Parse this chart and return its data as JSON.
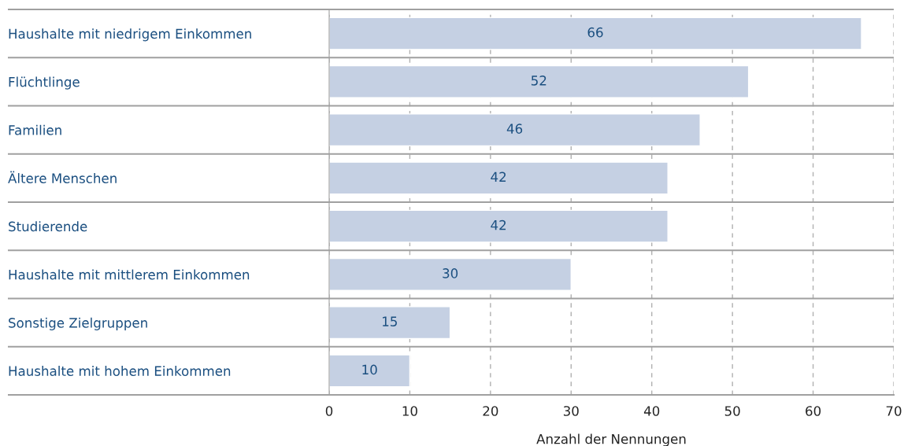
{
  "chart_data": {
    "type": "bar",
    "orientation": "horizontal",
    "xlabel": "Anzahl der Nennungen",
    "categories": [
      "Haushalte mit niedrigem Einkommen",
      "Flüchtlinge",
      "Familien",
      "Ältere Menschen",
      "Studierende",
      "Haushalte mit mittlerem Einkommen",
      "Sonstige Zielgruppen",
      "Haushalte mit hohem Einkommen"
    ],
    "values": [
      66,
      52,
      46,
      42,
      42,
      30,
      15,
      10
    ],
    "color": "#c5d0e3",
    "xlim": [
      0,
      70
    ],
    "xticks": [
      0,
      10,
      20,
      30,
      40,
      50,
      60,
      70
    ],
    "grid": "x",
    "data_labels": true,
    "legend": false
  }
}
